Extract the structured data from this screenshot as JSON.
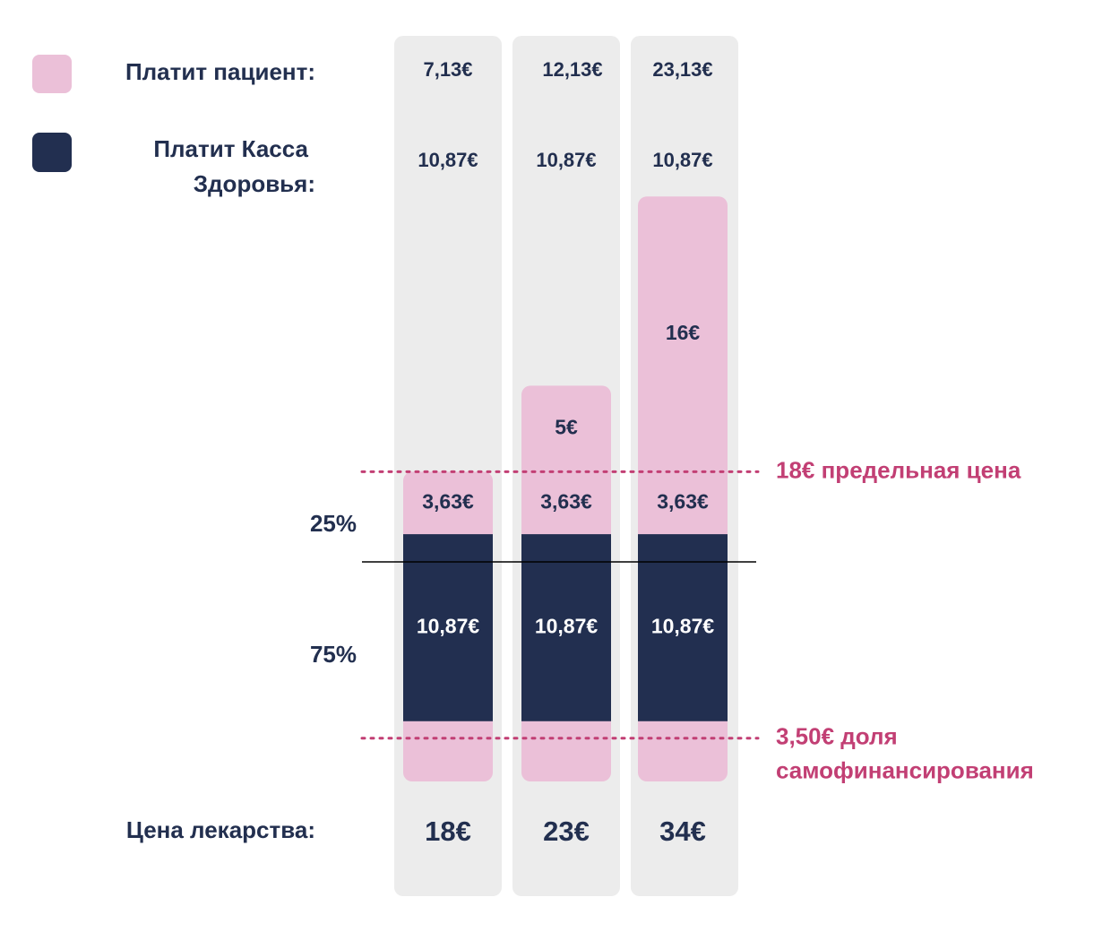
{
  "colors": {
    "patient": "#ebc0d8",
    "fund": "#222f50",
    "column_bg": "#ececec",
    "text": "#222f4f",
    "accent": "#c23f74",
    "line": "#000000"
  },
  "chart_data": {
    "type": "bar",
    "stacked": true,
    "categories": [
      "18€",
      "23€",
      "34€"
    ],
    "series": [
      {
        "name": "Платит Касса Здоровья:",
        "role": "fund",
        "values": [
          10.87,
          10.87,
          10.87
        ],
        "labels": [
          "10,87€",
          "10,87€",
          "10,87€"
        ]
      },
      {
        "name": "",
        "role": "patient-own-share",
        "values": [
          3.5,
          3.5,
          3.5
        ],
        "labels": []
      },
      {
        "name": "",
        "role": "patient-25pct",
        "values": [
          3.63,
          3.63,
          3.63
        ],
        "labels": [
          "3,63€",
          "3,63€",
          "3,63€"
        ]
      },
      {
        "name": "",
        "role": "patient-over-limit",
        "values": [
          0,
          5,
          16
        ],
        "labels": [
          "",
          "5€",
          "16€"
        ]
      }
    ],
    "legend": [
      {
        "label": "Платит пациент:",
        "role": "patient",
        "values": [
          "7,13€",
          "12,13€",
          "23,13€"
        ]
      },
      {
        "label": "Платит Касса Здоровья:",
        "role": "fund",
        "values": [
          "10,87€",
          "10,87€",
          "10,87€"
        ]
      }
    ],
    "legend_position": "top-left",
    "row_labels": {
      "pct_25": "25%",
      "pct_75": "75%",
      "price": "Цена лекарства:"
    },
    "reference_lines": [
      {
        "value": 18,
        "label": "18€ предельная цена",
        "style": "dotted"
      },
      {
        "value": 3.5,
        "label": "3,50€ доля самофинансирования",
        "style": "dotted"
      },
      {
        "value": 14.37,
        "label": "",
        "style": "solid"
      }
    ],
    "price_totals": [
      18,
      23,
      34
    ],
    "grid": false
  }
}
